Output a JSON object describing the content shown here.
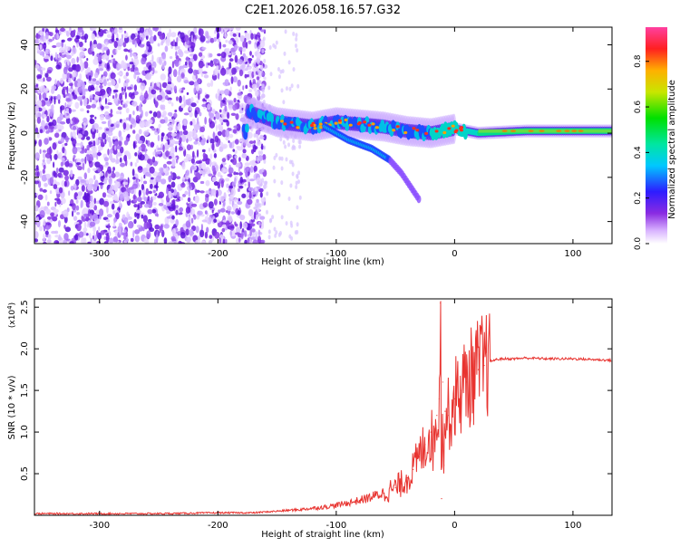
{
  "figure_title": "C2E1.2026.058.16.57.G32",
  "chart_data": [
    {
      "type": "heatmap",
      "title": "C2E1.2026.058.16.57.G32",
      "xlabel": "Height of straight line (km)",
      "ylabel": "Frequency (Hz)",
      "xlim": [
        -355,
        133
      ],
      "ylim": [
        -50,
        48
      ],
      "xticks": [
        -300,
        -200,
        -100,
        0,
        100
      ],
      "yticks": [
        -40,
        -20,
        0,
        20,
        40
      ],
      "xtick_labels": [
        "-300",
        "-200",
        "-100",
        "0",
        "100"
      ],
      "ytick_labels": [
        "-40",
        "-20",
        "0",
        "20",
        "40"
      ],
      "colorbar": {
        "label": "Normalized spectral amplitude",
        "range": [
          0,
          0.95
        ],
        "ticks": [
          0.0,
          0.2,
          0.4,
          0.6,
          0.8
        ],
        "tick_labels": [
          "0.0",
          "0.2",
          "0.4",
          "0.6",
          "0.8"
        ]
      },
      "regions": [
        {
          "name": "noise",
          "x_range": [
            -355,
            -165
          ],
          "freq_range": [
            -50,
            48
          ],
          "amplitude": 0.05
        },
        {
          "name": "signal-track",
          "points": [
            [
              -175,
              10
            ],
            [
              -150,
              5
            ],
            [
              -120,
              3
            ],
            [
              -100,
              5
            ],
            [
              -80,
              4
            ],
            [
              -60,
              3
            ],
            [
              -40,
              1
            ],
            [
              -20,
              0
            ],
            [
              0,
              2
            ],
            [
              20,
              0
            ],
            [
              60,
              1
            ],
            [
              100,
              1
            ],
            [
              133,
              1
            ]
          ],
          "amplitude": 0.9
        },
        {
          "name": "descending-branch",
          "points": [
            [
              -110,
              3
            ],
            [
              -90,
              -3
            ],
            [
              -70,
              -7
            ],
            [
              -55,
              -12
            ],
            [
              -45,
              -18
            ],
            [
              -40,
              -22
            ],
            [
              -30,
              -30
            ]
          ],
          "amplitude": 0.2
        }
      ]
    },
    {
      "type": "line",
      "xlabel": "Height of straight line (km)",
      "ylabel": "SNR (10 * v/v)",
      "scale_label": "(x10^4)",
      "scale_text": "(x10",
      "scale_exp": "4",
      "scale_close": ")",
      "xlim": [
        -355,
        133
      ],
      "ylim": [
        0,
        2.6
      ],
      "xticks": [
        -300,
        -200,
        -100,
        0,
        100
      ],
      "yticks": [
        0.5,
        1.0,
        1.5,
        2.0,
        2.5
      ],
      "xtick_labels": [
        "-300",
        "-200",
        "-100",
        "0",
        "100"
      ],
      "ytick_labels": [
        "0.5",
        "1.0",
        "1.5",
        "2.0",
        "2.5"
      ],
      "color": "#e8332f",
      "x": [
        -355,
        -300,
        -250,
        -200,
        -170,
        -150,
        -130,
        -110,
        -100,
        -90,
        -80,
        -70,
        -60,
        -50,
        -45,
        -40,
        -35,
        -30,
        -25,
        -20,
        -18,
        -15,
        -13,
        -12,
        -11,
        -10,
        -9,
        -8,
        -5,
        -2,
        0,
        5,
        10,
        15,
        20,
        25,
        30,
        35,
        40,
        50,
        60,
        80,
        100,
        120,
        133
      ],
      "y": [
        0.02,
        0.02,
        0.02,
        0.03,
        0.03,
        0.05,
        0.07,
        0.1,
        0.12,
        0.15,
        0.18,
        0.22,
        0.27,
        0.33,
        0.38,
        0.45,
        0.55,
        0.7,
        0.85,
        1.0,
        0.8,
        1.2,
        1.4,
        2.55,
        0.2,
        1.6,
        0.6,
        1.25,
        1.2,
        1.3,
        1.4,
        1.5,
        1.6,
        1.68,
        1.75,
        1.8,
        1.85,
        1.87,
        1.88,
        1.88,
        1.89,
        1.88,
        1.88,
        1.87,
        1.86
      ]
    }
  ]
}
